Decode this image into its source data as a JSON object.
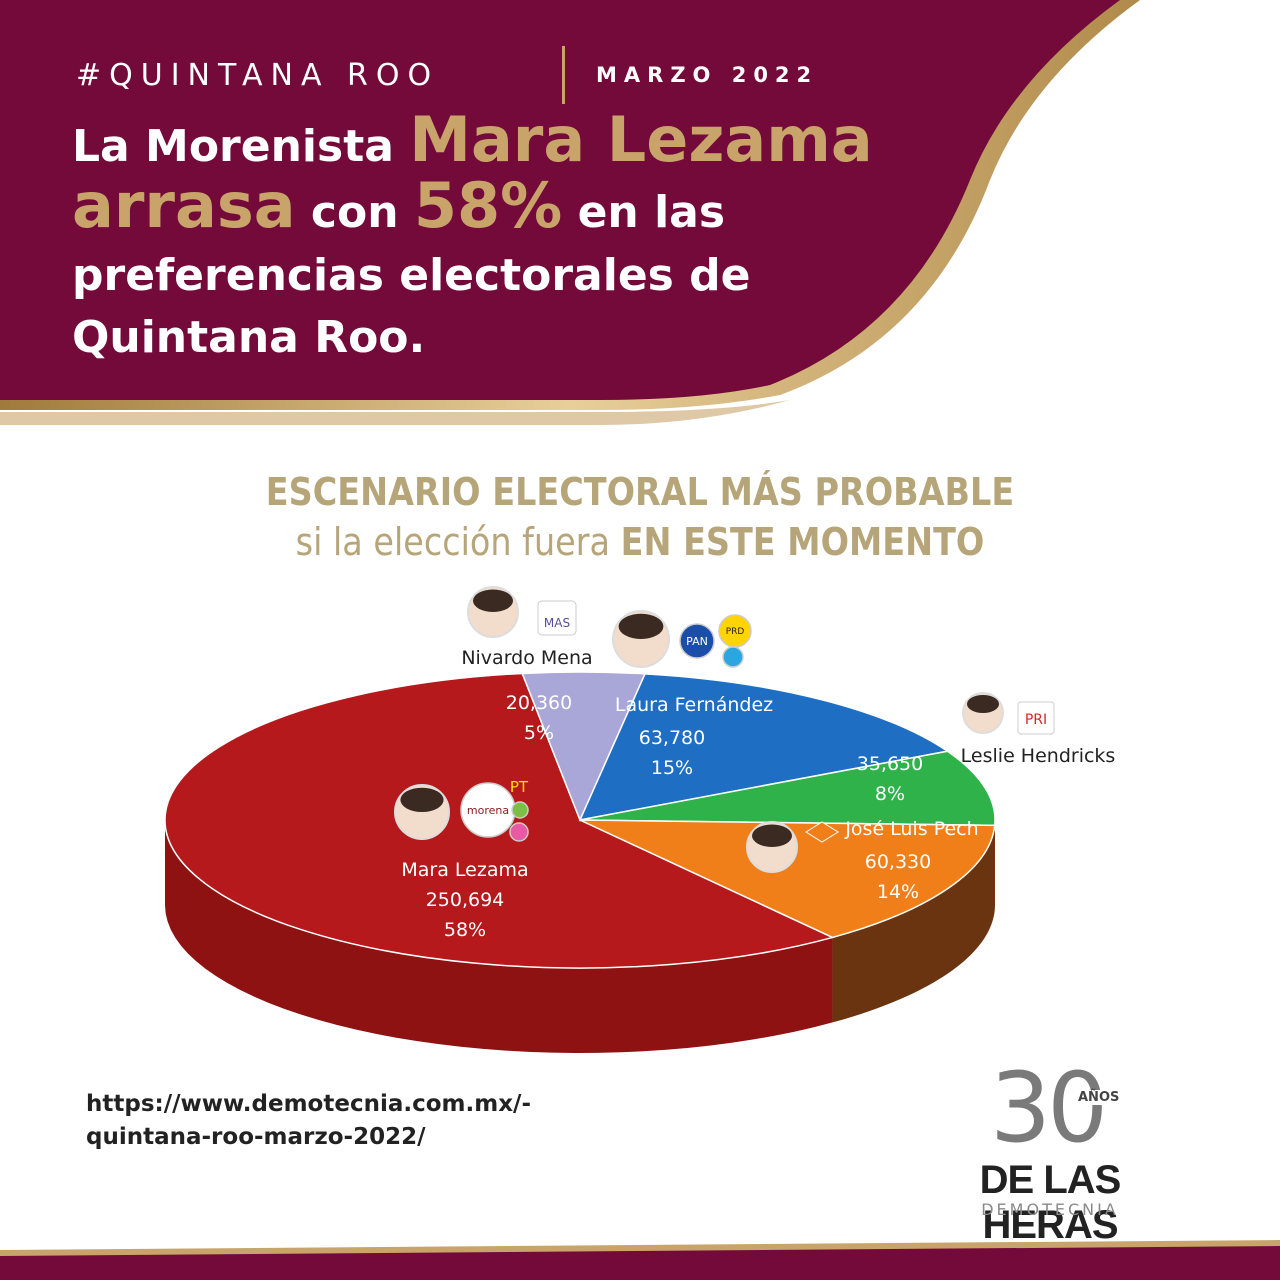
{
  "header": {
    "tag": "#QUINTANA ROO",
    "date": "MARZO 2022",
    "headline": {
      "p1": "La Morenista ",
      "name": "Mara Lezama",
      "p2": "arrasa",
      "p3": " con ",
      "pct": "58%",
      "p4": " en las preferencias electorales de Quintana Roo."
    }
  },
  "chart_title": {
    "line1": "ESCENARIO ELECTORAL MÁS PROBABLE",
    "line2_a": "si la elección fuera ",
    "line2_b": "EN ESTE MOMENTO"
  },
  "chart_data": {
    "type": "pie",
    "title": "ESCENARIO ELECTORAL MÁS PROBABLE si la elección fuera EN ESTE MOMENTO",
    "slices": [
      {
        "name": "Mara Lezama",
        "value": 250694,
        "value_label": "250,694",
        "percent": 58,
        "percent_label": "58%",
        "color": "#b5191b",
        "parties": [
          "morena",
          "PT",
          "verde",
          "fuerza"
        ]
      },
      {
        "name": "Nivardo Mena",
        "value": 20360,
        "value_label": "20,360",
        "percent": 5,
        "percent_label": "5%",
        "color": "#a9a6d8",
        "parties": [
          "MAS"
        ]
      },
      {
        "name": "Laura Fernández",
        "value": 63780,
        "value_label": "63,780",
        "percent": 15,
        "percent_label": "15%",
        "color": "#1e6fc3",
        "parties": [
          "PAN",
          "PRD",
          "CQ"
        ]
      },
      {
        "name": "Leslie Hendricks",
        "value": 35650,
        "value_label": "35,650",
        "percent": 8,
        "percent_label": "8%",
        "color": "#2fb24a",
        "parties": [
          "PRI"
        ]
      },
      {
        "name": "José Luis Pech",
        "value": 60330,
        "value_label": "60,330",
        "percent": 14,
        "percent_label": "14%",
        "color": "#f07f1a",
        "parties": [
          "MC"
        ]
      }
    ],
    "side_colors": [
      "#8c1010",
      "#7a5a1a",
      "#5c2a0a"
    ],
    "party_logo_texts": {
      "mas": "MAS",
      "pan": "PAN",
      "prd": "PRD",
      "pri": "PRI",
      "pt": "PT",
      "morena": "morena"
    }
  },
  "source": {
    "url": "https://www.demotecnia.com.mx/-quintana-roo-marzo-2022/"
  },
  "brand": {
    "num": "30",
    "anos": "AÑOS",
    "name": "DE LAS HERAS",
    "sub": "DEMOTECNIA"
  },
  "colors": {
    "maroon": "#730a3a",
    "gold": "#c9a46a"
  }
}
